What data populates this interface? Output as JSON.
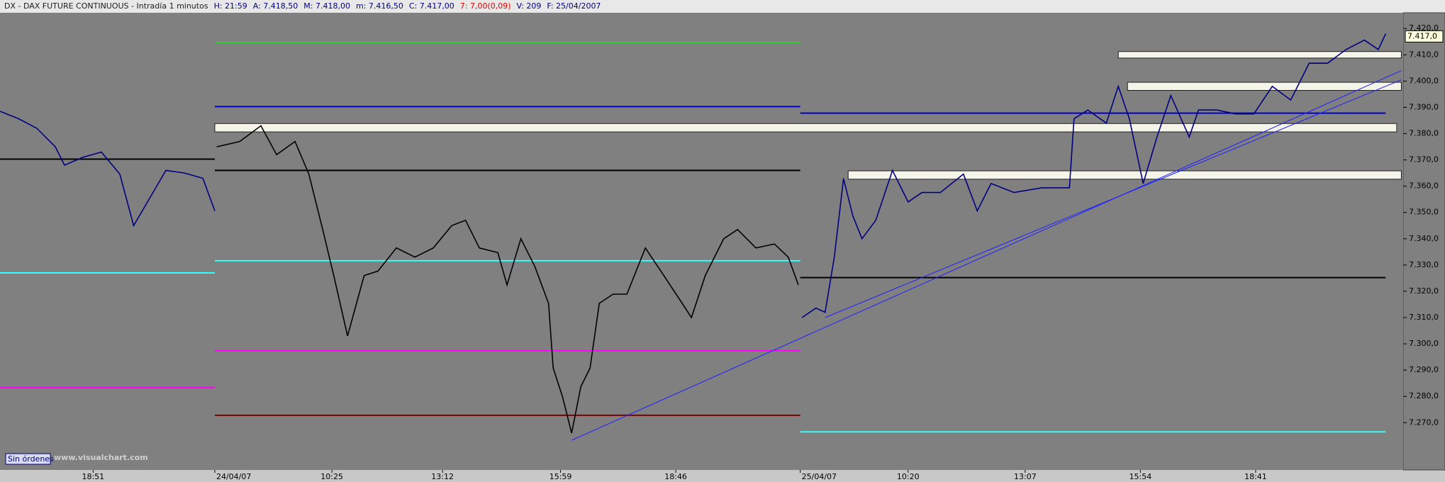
{
  "header": [
    {
      "text": "DX - DAX FUTURE CONTINUOUS - Intradía 1 minutos",
      "color": "#202020"
    },
    {
      "text": "H: 21:59",
      "color": "#000080"
    },
    {
      "text": "A: 7.418,50",
      "color": "#000080"
    },
    {
      "text": "M: 7.418,00",
      "color": "#000080"
    },
    {
      "text": "m: 7.416,50",
      "color": "#000080"
    },
    {
      "text": "C: 7.417,00",
      "color": "#000080"
    },
    {
      "text": "7: 7,00(0,09)",
      "color": "#e00000"
    },
    {
      "text": "V: 209",
      "color": "#000080"
    },
    {
      "text": "F: 25/04/2007",
      "color": "#000080"
    }
  ],
  "button": "Sin órdenes",
  "watermark": "www.visualchart.com",
  "chart_data": {
    "type": "line",
    "background": "#808080",
    "xlim": [
      0,
      1522
    ],
    "ylim": [
      7252,
      7426
    ],
    "xticks": [
      {
        "value": 101,
        "label": "18:51"
      },
      {
        "value": 233,
        "label": "24/04/07"
      },
      {
        "value": 360,
        "label": "10:25"
      },
      {
        "value": 480,
        "label": "13:12"
      },
      {
        "value": 608,
        "label": "15:59"
      },
      {
        "value": 733,
        "label": "18:46"
      },
      {
        "value": 868,
        "label": "25/04/07"
      },
      {
        "value": 985,
        "label": "10:20"
      },
      {
        "value": 1112,
        "label": "13:07"
      },
      {
        "value": 1237,
        "label": "15:54"
      },
      {
        "value": 1362,
        "label": "18:41"
      }
    ],
    "yticks": [
      {
        "value": 7270,
        "label": "7.270,0"
      },
      {
        "value": 7280,
        "label": "7.280,0"
      },
      {
        "value": 7290,
        "label": "7.290,0"
      },
      {
        "value": 7300,
        "label": "7.300,0"
      },
      {
        "value": 7310,
        "label": "7.310,0"
      },
      {
        "value": 7320,
        "label": "7.320,0"
      },
      {
        "value": 7330,
        "label": "7.330,0"
      },
      {
        "value": 7340,
        "label": "7.340,0"
      },
      {
        "value": 7350,
        "label": "7.350,0"
      },
      {
        "value": 7360,
        "label": "7.360,0"
      },
      {
        "value": 7370,
        "label": "7.370,0"
      },
      {
        "value": 7380,
        "label": "7.380,0"
      },
      {
        "value": 7390,
        "label": "7.390,0"
      },
      {
        "value": 7400,
        "label": "7.400,0"
      },
      {
        "value": 7410,
        "label": "7.410,0"
      },
      {
        "value": 7420,
        "label": "7.420,0"
      }
    ],
    "last_label": {
      "value": 7417,
      "label": "7.417,0"
    },
    "series": [
      {
        "color": "#000080",
        "x": [
          0,
          20,
          40,
          60,
          70,
          90,
          110,
          130,
          145,
          160,
          180,
          200,
          220,
          233
        ],
        "values": [
          7388.5,
          7385.7,
          7382,
          7375,
          7368,
          7371,
          7373,
          7364.6,
          7345,
          7354,
          7366,
          7365,
          7363,
          7350.6
        ]
      },
      {
        "color": "#000000",
        "x": [
          235,
          260,
          283,
          300,
          320,
          335,
          350,
          362,
          377,
          395,
          410,
          430,
          450,
          470,
          490,
          505,
          520,
          540,
          550,
          565,
          580,
          595,
          600,
          610,
          620,
          630,
          640,
          650,
          665,
          680,
          700,
          720,
          740,
          750,
          765,
          785,
          800,
          820,
          840,
          855,
          866
        ],
        "values": [
          7375,
          7377,
          7383,
          7372,
          7377,
          7364.6,
          7343.5,
          7326,
          7303,
          7326,
          7327.7,
          7336.5,
          7333,
          7336.5,
          7345,
          7347,
          7336.5,
          7334.7,
          7322.4,
          7340,
          7329.5,
          7315.4,
          7290.8,
          7280,
          7266,
          7283.7,
          7290.8,
          7315.4,
          7318.9,
          7318.9,
          7336.5,
          7326,
          7315.4,
          7310,
          7326,
          7340,
          7343.5,
          7336.5,
          7338,
          7333,
          7322.4
        ]
      },
      {
        "color": "#000080",
        "x": [
          870,
          885,
          895,
          905,
          915,
          925,
          935,
          950,
          968,
          985,
          1000,
          1020,
          1045,
          1060,
          1075,
          1100,
          1130,
          1160,
          1165,
          1180,
          1200,
          1213,
          1225,
          1240,
          1255,
          1270,
          1290,
          1300,
          1320,
          1340,
          1360,
          1380,
          1400,
          1420,
          1440,
          1460,
          1480,
          1495,
          1503
        ],
        "values": [
          7310,
          7313.6,
          7312,
          7333,
          7362.9,
          7348.8,
          7340,
          7347,
          7366,
          7354,
          7357.6,
          7357.6,
          7364.6,
          7350.6,
          7361,
          7357.6,
          7359.4,
          7359.4,
          7385.7,
          7389,
          7384,
          7398,
          7385.7,
          7361,
          7378.7,
          7394.5,
          7378.7,
          7389,
          7389,
          7387.5,
          7387.5,
          7398,
          7392.8,
          7406.8,
          7406.8,
          7412,
          7415.6,
          7412,
          7418
        ]
      }
    ],
    "levels": [
      {
        "value": 7414.6,
        "color": "#33cc33",
        "x": [
          233,
          868
        ]
      },
      {
        "value": 7390.3,
        "color": "#0000cc",
        "x": [
          233,
          868
        ]
      },
      {
        "value": 7370.3,
        "color": "#000000",
        "x": [
          0,
          233
        ]
      },
      {
        "value": 7366,
        "color": "#000000",
        "x": [
          233,
          868
        ]
      },
      {
        "value": 7327,
        "color": "#33ffff",
        "x": [
          0,
          233
        ]
      },
      {
        "value": 7331.6,
        "color": "#33ffff",
        "x": [
          233,
          868
        ]
      },
      {
        "value": 7283.4,
        "color": "#ff00ff",
        "x": [
          0,
          233
        ]
      },
      {
        "value": 7297.4,
        "color": "#ff00ff",
        "x": [
          233,
          868
        ]
      },
      {
        "value": 7272.8,
        "color": "#800000",
        "x": [
          233,
          868
        ]
      },
      {
        "value": 7387.8,
        "color": "#0000cc",
        "x": [
          868,
          1503
        ]
      },
      {
        "value": 7325.2,
        "color": "#000000",
        "x": [
          868,
          1503
        ]
      },
      {
        "value": 7266.5,
        "color": "#33ffff",
        "x": [
          868,
          1503
        ]
      }
    ],
    "zones": [
      {
        "low": 7409.3,
        "high": 7410.7,
        "x": [
          1213,
          1520
        ]
      },
      {
        "low": 7397,
        "high": 7399,
        "x": [
          1223,
          1520
        ]
      },
      {
        "low": 7381.2,
        "high": 7383.3,
        "x": [
          233,
          1515
        ]
      },
      {
        "low": 7363.2,
        "high": 7365.3,
        "x": [
          920,
          1520
        ]
      }
    ],
    "trendlines": [
      {
        "x": [
          620,
          1520
        ],
        "values": [
          7263.3,
          7404
        ]
      },
      {
        "x": [
          895,
          1520
        ],
        "values": [
          7310,
          7400.5
        ]
      }
    ]
  }
}
